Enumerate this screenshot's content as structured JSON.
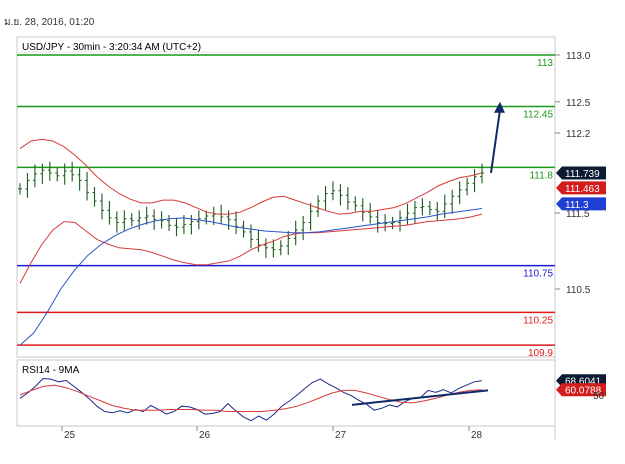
{
  "header": {
    "timestamp": "ม.ย. 28, 2016, 01:20"
  },
  "colors": {
    "green": "#1a9a1a",
    "blue": "#1a1ad0",
    "red": "#e01a1a",
    "price": "#1a5c1a",
    "bollinger": "#d83a3a",
    "ma": "#2a55c8",
    "arrow": "#0f2a6a",
    "badge_dark": "#0d1a33",
    "badge_red": "#d21d1d",
    "badge_blue": "#1f3fd2"
  },
  "chart_data": [
    {
      "type": "line",
      "title": "USD/JPY - 30min - 3:20:34 AM (UTC+2)",
      "ylim": [
        109.75,
        113.15
      ],
      "yticks": [
        "113.0",
        "112.5",
        "112.2",
        "111.5",
        "110.5"
      ],
      "x_ticks": [
        "25",
        "26",
        "27",
        "28"
      ],
      "levels": [
        {
          "label": "113",
          "value": 113.0,
          "color": "green"
        },
        {
          "label": "112.45",
          "value": 112.45,
          "color": "green"
        },
        {
          "label": "111.8",
          "value": 111.8,
          "color": "green"
        },
        {
          "label": "110.75",
          "value": 110.75,
          "color": "blue"
        },
        {
          "label": "110.25",
          "value": 110.25,
          "color": "red"
        },
        {
          "label": "109.9",
          "value": 109.9,
          "color": "red"
        }
      ],
      "badges": [
        {
          "label": "111.739",
          "value": 111.739,
          "style": "dark"
        },
        {
          "label": "111.463",
          "value": 111.58,
          "style": "red"
        },
        {
          "label": "111.3",
          "value": 111.41,
          "style": "blue"
        }
      ],
      "series": [
        {
          "name": "price",
          "values": [
            111.57,
            111.66,
            111.73,
            111.77,
            111.74,
            111.71,
            111.76,
            111.72,
            111.66,
            111.53,
            111.44,
            111.34,
            111.26,
            111.21,
            111.25,
            111.23,
            111.26,
            111.28,
            111.24,
            111.23,
            111.18,
            111.16,
            111.19,
            111.22,
            111.25,
            111.28,
            111.3,
            111.27,
            111.24,
            111.17,
            111.11,
            111.03,
            110.97,
            110.94,
            110.92,
            110.96,
            111.04,
            111.13,
            111.21,
            111.33,
            111.44,
            111.52,
            111.55,
            111.5,
            111.43,
            111.39,
            111.32,
            111.27,
            111.21,
            111.2,
            111.21,
            111.26,
            111.31,
            111.37,
            111.38,
            111.35,
            111.33,
            111.41,
            111.49,
            111.56,
            111.63,
            111.7,
            111.74
          ]
        },
        {
          "name": "bollinger-upper",
          "values": [
            112.0,
            112.08,
            112.1,
            112.08,
            112.02,
            111.93,
            111.82,
            111.7,
            111.6,
            111.52,
            111.46,
            111.42,
            111.42,
            111.45,
            111.45,
            111.42,
            111.37,
            111.32,
            111.3,
            111.3,
            111.32,
            111.37,
            111.43,
            111.48,
            111.49,
            111.45,
            111.41,
            111.37,
            111.33,
            111.3,
            111.31,
            111.33,
            111.33,
            111.35,
            111.37,
            111.41,
            111.47,
            111.53,
            111.6,
            111.65,
            111.69,
            111.71,
            111.74
          ]
        },
        {
          "name": "bollinger-lower",
          "values": [
            110.56,
            110.78,
            110.98,
            111.13,
            111.22,
            111.21,
            111.12,
            111.03,
            110.98,
            110.94,
            110.93,
            110.92,
            110.89,
            110.85,
            110.81,
            110.78,
            110.76,
            110.76,
            110.78,
            110.8,
            110.85,
            110.92,
            110.97,
            111.01,
            111.06,
            111.09,
            111.1,
            111.1,
            111.11,
            111.12,
            111.13,
            111.14,
            111.15,
            111.16,
            111.17,
            111.18,
            111.2,
            111.22,
            111.23,
            111.24,
            111.25,
            111.27,
            111.3
          ]
        },
        {
          "name": "moving-average",
          "values": [
            109.9,
            110.03,
            110.25,
            110.5,
            110.7,
            110.86,
            110.98,
            111.07,
            111.14,
            111.19,
            111.23,
            111.25,
            111.26,
            111.24,
            111.22,
            111.19,
            111.16,
            111.14,
            111.12,
            111.11,
            111.1,
            111.1,
            111.11,
            111.13,
            111.15,
            111.17,
            111.19,
            111.21,
            111.23,
            111.25,
            111.27,
            111.3,
            111.32,
            111.34,
            111.36
          ]
        },
        {
          "name": "arrow",
          "values": [
            111.74,
            112.5
          ]
        }
      ]
    },
    {
      "type": "line",
      "title": "RSI14 - 9MA",
      "badges": [
        {
          "label": "68.6041",
          "value": 68.6,
          "style": "dark"
        },
        {
          "label": "60.0788",
          "value": 55.0,
          "style": "red"
        },
        {
          "label": "50",
          "value": 47.0,
          "style": "text"
        }
      ],
      "series": [
        {
          "name": "rsi",
          "values": [
            42,
            50,
            60,
            72,
            71,
            67,
            69,
            60,
            51,
            41,
            30,
            22,
            20,
            23,
            20,
            25,
            22,
            31,
            25,
            18,
            22,
            30,
            29,
            25,
            18,
            19,
            22,
            34,
            23,
            14,
            8,
            15,
            9,
            18,
            30,
            38,
            47,
            57,
            66,
            71,
            64,
            58,
            51,
            46,
            39,
            33,
            24,
            27,
            32,
            29,
            37,
            42,
            43,
            54,
            51,
            55,
            50,
            57,
            62,
            67,
            68.6
          ]
        },
        {
          "name": "rsi-ma",
          "values": [
            47,
            54,
            60,
            62,
            58,
            52,
            45,
            38,
            31,
            27,
            24,
            24,
            24,
            25,
            25,
            25,
            24,
            24,
            22,
            22,
            22,
            22,
            24,
            26,
            30,
            36,
            43,
            50,
            54,
            54,
            50,
            45,
            40,
            36,
            35,
            38,
            42,
            47,
            51,
            54,
            55
          ]
        },
        {
          "name": "rsi-trendline",
          "values": [
            32,
            54
          ]
        }
      ]
    }
  ]
}
